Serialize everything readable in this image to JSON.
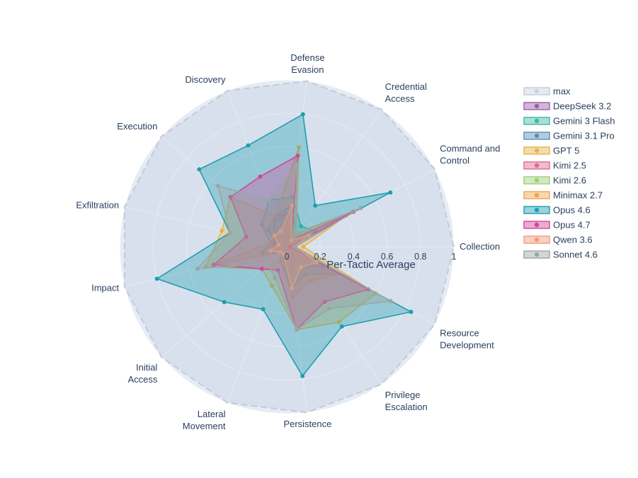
{
  "chart_data": {
    "type": "radar",
    "title": "",
    "overlay_label": "Per-Tactic Average",
    "radial_range": [
      0,
      1
    ],
    "radial_ticks": [
      "0",
      "0.2",
      "0.4",
      "0.6",
      "0.8",
      "1"
    ],
    "grid": true,
    "legend_position": "right",
    "categories": [
      "Collection",
      "Command and\nControl",
      "Credential\nAccess",
      "Defense\nEvasion",
      "Discovery",
      "Execution",
      "Exfiltration",
      "Impact",
      "Initial\nAccess",
      "Lateral\nMovement",
      "Persistence",
      "Privilege\nEscalation",
      "Resource\nDevelopment"
    ],
    "series": [
      {
        "name": "max",
        "color": "#c8d3e3",
        "dash": true,
        "values": [
          1,
          1,
          1,
          1,
          1,
          1,
          1,
          1,
          1,
          1,
          1,
          1,
          1
        ]
      },
      {
        "name": "DeepSeek 3.2",
        "color": "#9a5fa6",
        "values": [
          0.05,
          0.1,
          0.05,
          0.2,
          0.2,
          0.1,
          0.08,
          0.05,
          0.05,
          0.05,
          0.2,
          0.1,
          0.05
        ]
      },
      {
        "name": "Gemini 3 Flash",
        "color": "#3fb8a6",
        "values": [
          0.05,
          0.2,
          0.15,
          0.3,
          0.3,
          0.2,
          0.1,
          0.15,
          0.05,
          0.1,
          0.25,
          0.2,
          0.35
        ]
      },
      {
        "name": "Gemini 3.1 Pro",
        "color": "#5e8fb3",
        "values": [
          0.05,
          0.15,
          0.1,
          0.25,
          0.2,
          0.15,
          0.05,
          0.1,
          0.05,
          0.05,
          0.2,
          0.15,
          0.25
        ]
      },
      {
        "name": "GPT 5",
        "color": "#e8b24a",
        "values": [
          0.1,
          0.4,
          0.1,
          0.6,
          0.2,
          0.45,
          0.4,
          0.5,
          0.2,
          0.25,
          0.5,
          0.55,
          0.6
        ]
      },
      {
        "name": "Kimi 2.5",
        "color": "#e06a8f",
        "values": [
          0.05,
          0.1,
          0.05,
          0.15,
          0.1,
          0.1,
          0.05,
          0.1,
          0.05,
          0.05,
          0.15,
          0.1,
          0.15
        ]
      },
      {
        "name": "Kimi 2.6",
        "color": "#9bcf7a",
        "values": [
          0.05,
          0.15,
          0.1,
          0.2,
          0.15,
          0.1,
          0.05,
          0.1,
          0.05,
          0.05,
          0.2,
          0.15,
          0.2
        ]
      },
      {
        "name": "Minimax 2.7",
        "color": "#f0a64a",
        "values": [
          0.05,
          0.1,
          0.05,
          0.15,
          0.1,
          0.1,
          0.1,
          0.45,
          0.05,
          0.1,
          0.3,
          0.25,
          0.35
        ]
      },
      {
        "name": "Opus 4.6",
        "color": "#1e9eae",
        "values": [
          0.02,
          0.7,
          0.3,
          0.8,
          0.65,
          0.7,
          0.35,
          0.8,
          0.5,
          0.4,
          0.78,
          0.58,
          0.84
        ]
      },
      {
        "name": "Opus 4.7",
        "color": "#d0489a",
        "values": [
          0.02,
          0.45,
          0.05,
          0.55,
          0.45,
          0.45,
          0.25,
          0.45,
          0.2,
          0.15,
          0.5,
          0.4,
          0.55
        ]
      },
      {
        "name": "Qwen 3.6",
        "color": "#f09a7c",
        "values": [
          0.05,
          0.15,
          0.05,
          0.25,
          0.1,
          0.1,
          0.05,
          0.1,
          0.05,
          0.05,
          0.25,
          0.15,
          0.2
        ]
      },
      {
        "name": "Sonnet 4.6",
        "color": "#9aa6a4",
        "values": [
          0.05,
          0.5,
          0.1,
          0.5,
          0.3,
          0.55,
          0.35,
          0.55,
          0.15,
          0.2,
          0.5,
          0.45,
          0.7
        ]
      }
    ]
  }
}
